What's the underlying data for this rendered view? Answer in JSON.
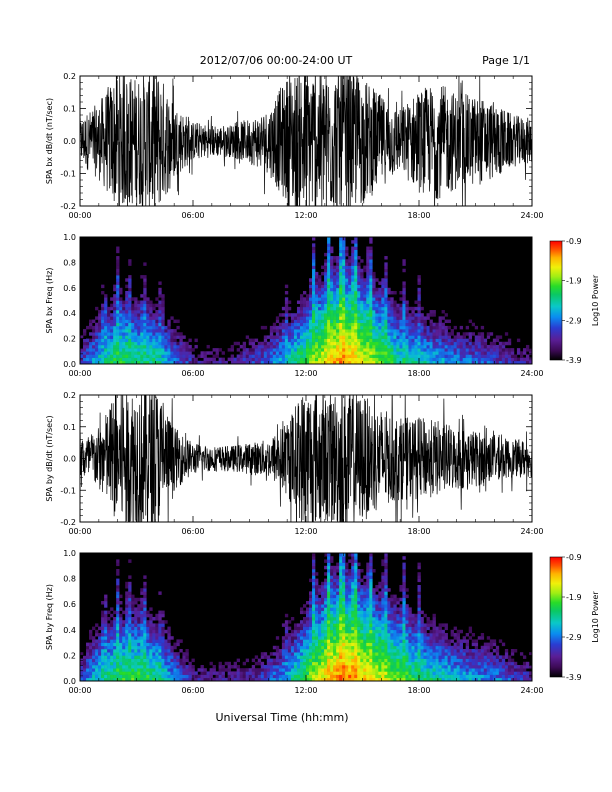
{
  "header": {
    "date_range": "2012/07/06  00:00-24:00 UT",
    "page": "Page 1/1"
  },
  "colors": {
    "waveform": "#000000",
    "spectrogram_background": "#000000",
    "colormap": [
      "#000000",
      "#3c0a55",
      "#5a1e96",
      "#2a3cd2",
      "#0a8cf0",
      "#0ac8c8",
      "#0ac864",
      "#28dc28",
      "#a0ee14",
      "#f0f00a",
      "#ffb400",
      "#ff5000",
      "#ff0000"
    ]
  },
  "chart_data": [
    {
      "type": "line",
      "ylabel": "SPA bx dB/dt (nT/sec)",
      "xlim": [
        0,
        24
      ],
      "ylim": [
        -0.2,
        0.2
      ],
      "x_ticks": [
        "00:00",
        "06:00",
        "12:00",
        "18:00",
        "24:00"
      ],
      "y_ticks": [
        "-0.2",
        "-0.1",
        "0.0",
        "0.1",
        "0.2"
      ],
      "x_hours": [
        0,
        1,
        2,
        3,
        4,
        5,
        6,
        7,
        8,
        9,
        10,
        11,
        12,
        13,
        14,
        15,
        16,
        17,
        18,
        19,
        20,
        21,
        22,
        23,
        24
      ],
      "envelope_nT_s": [
        0.07,
        0.12,
        0.22,
        0.2,
        0.24,
        0.12,
        0.06,
        0.05,
        0.05,
        0.07,
        0.1,
        0.2,
        0.24,
        0.22,
        0.24,
        0.2,
        0.14,
        0.1,
        0.16,
        0.18,
        0.15,
        0.14,
        0.12,
        0.08,
        0.07
      ]
    },
    {
      "type": "heatmap",
      "ylabel": "SPA bx Freq (Hz)",
      "xlim": [
        0,
        24
      ],
      "ylim": [
        0,
        1
      ],
      "x_ticks": [
        "00:00",
        "06:00",
        "12:00",
        "18:00",
        "24:00"
      ],
      "y_ticks": [
        "0.0",
        "0.2",
        "0.4",
        "0.6",
        "0.8",
        "1.0"
      ],
      "colorbar_label": "Log10 Power",
      "colorbar_range": [
        -3.9,
        -0.9
      ],
      "colorbar_ticks": [
        "-0.9",
        "-1.9",
        "-2.9",
        "-3.9"
      ],
      "x_hours": [
        0,
        1,
        2,
        3,
        4,
        5,
        6,
        7,
        8,
        9,
        10,
        11,
        12,
        13,
        14,
        15,
        16,
        17,
        18,
        19,
        20,
        21,
        22,
        23,
        24
      ],
      "low_freq_log10": [
        -3.2,
        -2.6,
        -2.2,
        -2.3,
        -2.4,
        -2.9,
        -3.3,
        -3.4,
        -3.4,
        -3.2,
        -3.0,
        -2.6,
        -2.1,
        -1.6,
        -1.2,
        -1.6,
        -2.0,
        -2.4,
        -2.6,
        -2.7,
        -2.9,
        -3.0,
        -3.1,
        -3.3,
        -3.4
      ]
    },
    {
      "type": "line",
      "ylabel": "SPA by dB/dt (nT/sec)",
      "xlim": [
        0,
        24
      ],
      "ylim": [
        -0.2,
        0.2
      ],
      "x_ticks": [
        "00:00",
        "06:00",
        "12:00",
        "18:00",
        "24:00"
      ],
      "y_ticks": [
        "-0.2",
        "-0.1",
        "0.0",
        "0.1",
        "0.2"
      ],
      "x_hours": [
        0,
        1,
        2,
        3,
        4,
        5,
        6,
        7,
        8,
        9,
        10,
        11,
        12,
        13,
        14,
        15,
        16,
        17,
        18,
        19,
        20,
        21,
        22,
        23,
        24
      ],
      "envelope_nT_s": [
        0.06,
        0.1,
        0.22,
        0.24,
        0.24,
        0.1,
        0.05,
        0.04,
        0.04,
        0.05,
        0.06,
        0.12,
        0.24,
        0.2,
        0.24,
        0.2,
        0.16,
        0.13,
        0.13,
        0.12,
        0.1,
        0.09,
        0.07,
        0.06,
        0.06
      ]
    },
    {
      "type": "heatmap",
      "ylabel": "SPA by Freq (Hz)",
      "xlim": [
        0,
        24
      ],
      "ylim": [
        0,
        1
      ],
      "x_ticks": [
        "00:00",
        "06:00",
        "12:00",
        "18:00",
        "24:00"
      ],
      "y_ticks": [
        "0.0",
        "0.2",
        "0.4",
        "0.6",
        "0.8",
        "1.0"
      ],
      "colorbar_label": "Log10 Power",
      "colorbar_range": [
        -3.9,
        -0.9
      ],
      "colorbar_ticks": [
        "-0.9",
        "-1.9",
        "-2.9",
        "-3.9"
      ],
      "x_hours": [
        0,
        1,
        2,
        3,
        4,
        5,
        6,
        7,
        8,
        9,
        10,
        11,
        12,
        13,
        14,
        15,
        16,
        17,
        18,
        19,
        20,
        21,
        22,
        23,
        24
      ],
      "low_freq_log10": [
        -3.1,
        -2.5,
        -2.2,
        -2.1,
        -2.3,
        -2.8,
        -3.3,
        -3.4,
        -3.4,
        -3.3,
        -3.1,
        -2.7,
        -2.1,
        -1.5,
        -1.1,
        -1.4,
        -1.7,
        -2.0,
        -2.3,
        -2.5,
        -2.7,
        -2.8,
        -2.9,
        -3.1,
        -3.3
      ]
    }
  ],
  "x_axis_title": "Universal Time (hh:mm)"
}
